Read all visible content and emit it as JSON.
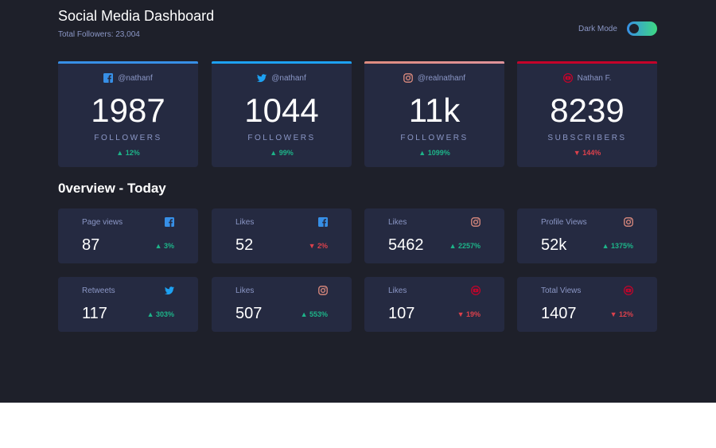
{
  "header": {
    "title": "Social Media Dashboard",
    "subtitle": "Total Followers: 23,004",
    "mode_label": "Dark Mode"
  },
  "colors": {
    "facebook": "#378fe6",
    "twitter": "#1da1f2",
    "instagram": "#df8c7f",
    "youtube": "#c4032a",
    "up": "#1db489",
    "down": "#dc414c",
    "background": "#1e202a",
    "card": "#252a41"
  },
  "big_cards": [
    {
      "platform": "facebook-icon",
      "handle": "@nathanf",
      "count": "1987",
      "unit": "FOLLOWERS",
      "change": "▲ 12%",
      "trend": "up"
    },
    {
      "platform": "twitter-icon",
      "handle": "@nathanf",
      "count": "1044",
      "unit": "FOLLOWERS",
      "change": "▲ 99%",
      "trend": "up"
    },
    {
      "platform": "instagram-icon",
      "handle": "@realnathanf",
      "count": "11k",
      "unit": "FOLLOWERS",
      "change": "▲ 1099%",
      "trend": "up"
    },
    {
      "platform": "youtube-icon",
      "handle": "Nathan F.",
      "count": "8239",
      "unit": "SUBSCRIBERS",
      "change": "▼ 144%",
      "trend": "down"
    }
  ],
  "overview": {
    "title": "0verview - Today",
    "cards": [
      {
        "label": "Page views",
        "platform": "facebook-icon",
        "value": "87",
        "change": "▲ 3%",
        "trend": "up"
      },
      {
        "label": "Likes",
        "platform": "facebook-icon",
        "value": "52",
        "change": "▼ 2%",
        "trend": "down"
      },
      {
        "label": "Likes",
        "platform": "instagram-icon",
        "value": "5462",
        "change": "▲ 2257%",
        "trend": "up"
      },
      {
        "label": "Profile Views",
        "platform": "instagram-icon",
        "value": "52k",
        "change": "▲ 1375%",
        "trend": "up"
      },
      {
        "label": "Retweets",
        "platform": "twitter-icon",
        "value": "117",
        "change": "▲ 303%",
        "trend": "up"
      },
      {
        "label": "Likes",
        "platform": "instagram-icon",
        "value": "507",
        "change": "▲ 553%",
        "trend": "up"
      },
      {
        "label": "Likes",
        "platform": "youtube-icon",
        "value": "107",
        "change": "▼ 19%",
        "trend": "down"
      },
      {
        "label": "Total Views",
        "platform": "youtube-icon",
        "value": "1407",
        "change": "▼ 12%",
        "trend": "down"
      }
    ]
  }
}
